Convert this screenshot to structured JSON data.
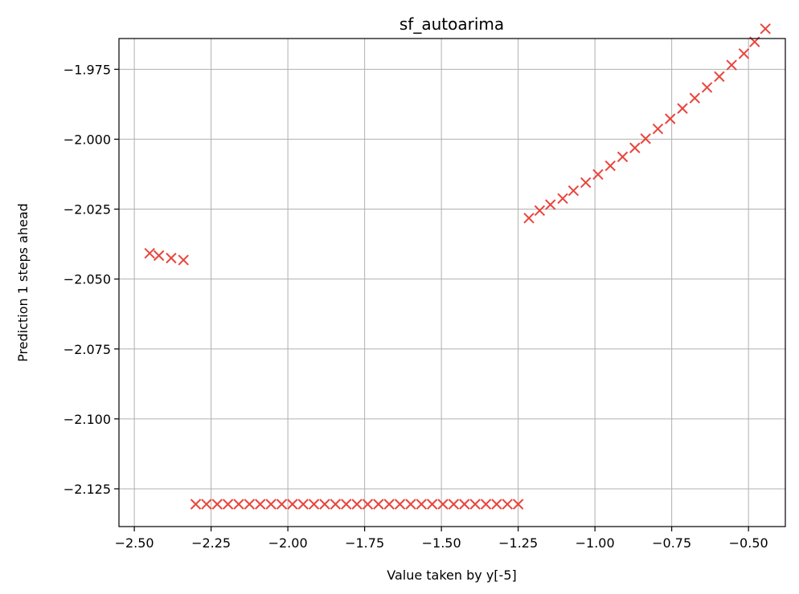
{
  "chart_data": {
    "type": "scatter",
    "title": "sf_autoarima",
    "xlabel": "Value taken by y[-5]",
    "ylabel": "Prediction 1 steps ahead",
    "xlim": [
      -2.55,
      -0.38
    ],
    "ylim": [
      -2.1385,
      -1.964
    ],
    "xticks": [
      -2.5,
      -2.25,
      -2.0,
      -1.75,
      -1.5,
      -1.25,
      -1.0,
      -0.75,
      -0.5
    ],
    "xtick_labels": [
      "−2.50",
      "−2.25",
      "−2.00",
      "−1.75",
      "−1.50",
      "−1.25",
      "−1.00",
      "−0.75",
      "−0.50"
    ],
    "yticks": [
      -1.975,
      -2.0,
      -2.025,
      -2.05,
      -2.075,
      -2.1,
      -2.125
    ],
    "ytick_labels": [
      "−1.975",
      "−2.000",
      "−2.025",
      "−2.050",
      "−2.075",
      "−2.100",
      "−2.125"
    ],
    "grid": true,
    "marker": "x",
    "color": "#e8453c",
    "series": [
      {
        "points": [
          [
            -2.45,
            -2.0408
          ],
          [
            -2.42,
            -2.0416
          ],
          [
            -2.38,
            -2.0425
          ],
          [
            -2.34,
            -2.0432
          ],
          [
            -2.3,
            -2.1305
          ],
          [
            -2.265,
            -2.1305
          ],
          [
            -2.23,
            -2.1305
          ],
          [
            -2.195,
            -2.1305
          ],
          [
            -2.16,
            -2.1305
          ],
          [
            -2.125,
            -2.1305
          ],
          [
            -2.09,
            -2.1305
          ],
          [
            -2.055,
            -2.1305
          ],
          [
            -2.02,
            -2.1305
          ],
          [
            -1.985,
            -2.1305
          ],
          [
            -1.95,
            -2.1305
          ],
          [
            -1.915,
            -2.1305
          ],
          [
            -1.88,
            -2.1305
          ],
          [
            -1.845,
            -2.1305
          ],
          [
            -1.81,
            -2.1305
          ],
          [
            -1.775,
            -2.1305
          ],
          [
            -1.74,
            -2.1305
          ],
          [
            -1.705,
            -2.1305
          ],
          [
            -1.67,
            -2.1305
          ],
          [
            -1.635,
            -2.1305
          ],
          [
            -1.6,
            -2.1305
          ],
          [
            -1.565,
            -2.1305
          ],
          [
            -1.53,
            -2.1305
          ],
          [
            -1.495,
            -2.1305
          ],
          [
            -1.46,
            -2.1305
          ],
          [
            -1.425,
            -2.1305
          ],
          [
            -1.39,
            -2.1305
          ],
          [
            -1.355,
            -2.1305
          ],
          [
            -1.32,
            -2.1305
          ],
          [
            -1.285,
            -2.1305
          ],
          [
            -1.25,
            -2.1305
          ],
          [
            -1.215,
            -2.0282
          ],
          [
            -1.18,
            -2.0255
          ],
          [
            -1.145,
            -2.0234
          ],
          [
            -1.105,
            -2.0212
          ],
          [
            -1.07,
            -2.0184
          ],
          [
            -1.03,
            -2.0155
          ],
          [
            -0.99,
            -2.0126
          ],
          [
            -0.95,
            -2.0095
          ],
          [
            -0.91,
            -2.0063
          ],
          [
            -0.87,
            -2.0031
          ],
          [
            -0.835,
            -1.9998
          ],
          [
            -0.795,
            -1.9963
          ],
          [
            -0.755,
            -1.9927
          ],
          [
            -0.715,
            -1.989
          ],
          [
            -0.675,
            -1.9853
          ],
          [
            -0.635,
            -1.9815
          ],
          [
            -0.595,
            -1.9776
          ],
          [
            -0.555,
            -1.9735
          ],
          [
            -0.515,
            -1.9694
          ],
          [
            -0.48,
            -1.9652
          ],
          [
            -0.445,
            -1.9605
          ]
        ]
      }
    ]
  }
}
